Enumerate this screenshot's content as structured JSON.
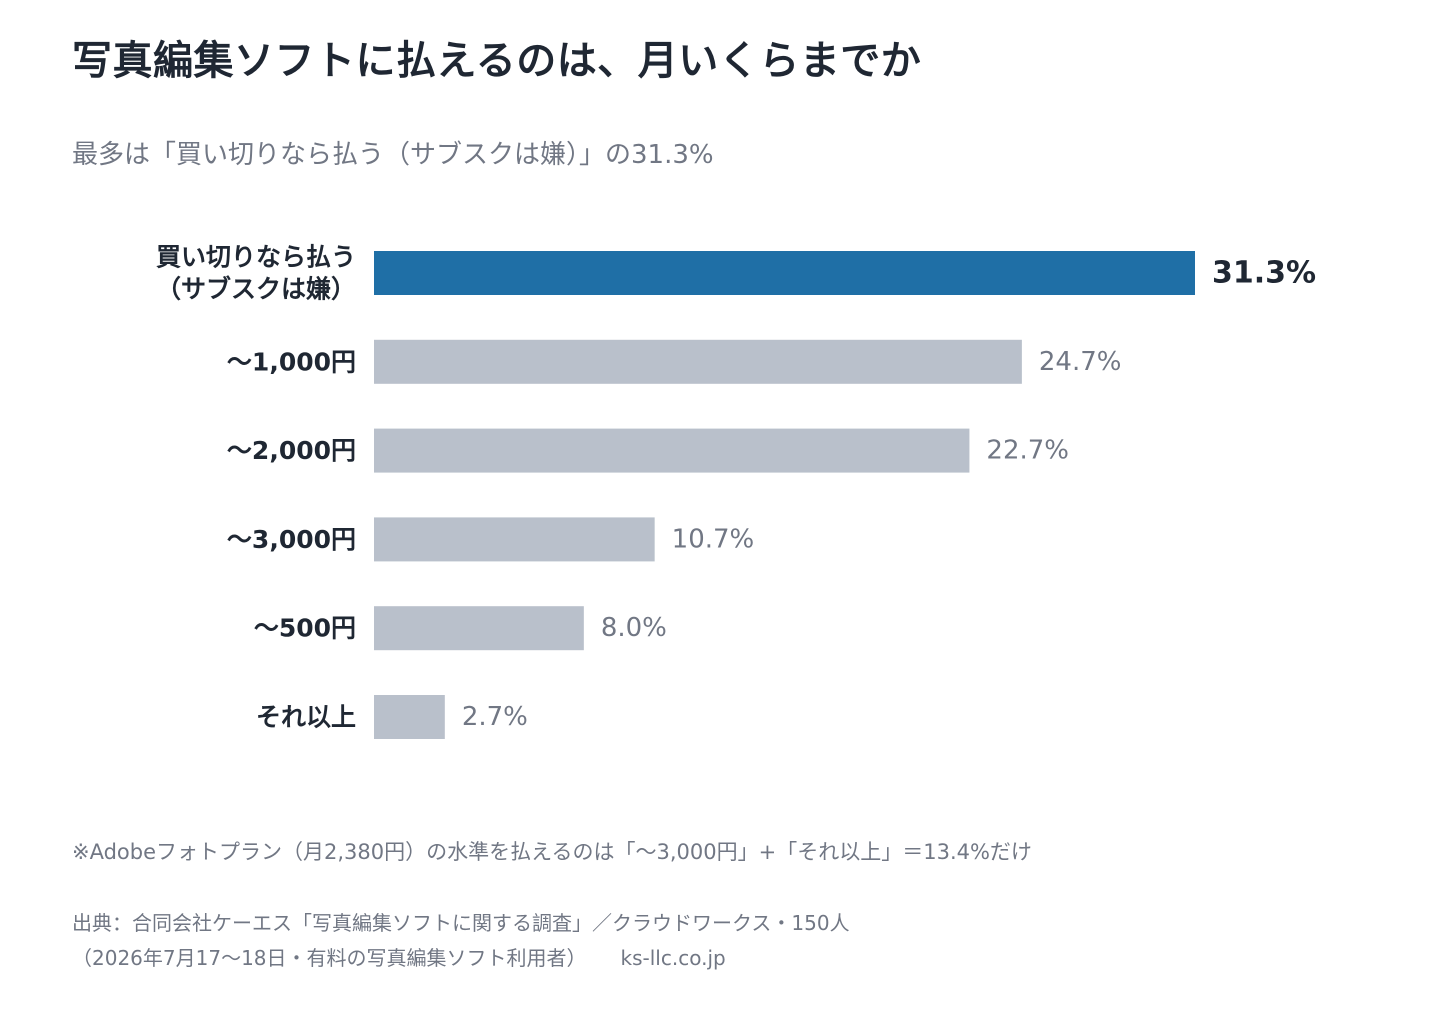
{
  "title": "写真編集ソフトに払えるのは、月いくらまでか",
  "subtitle": "最多は「買い切りなら払う（サブスクは嫌）」の31.3%",
  "chart_data": {
    "type": "bar",
    "orientation": "horizontal",
    "categories": [
      [
        "買い切りなら払う",
        "（サブスクは嫌）"
      ],
      [
        "～1,000円"
      ],
      [
        "～2,000円"
      ],
      [
        "～3,000円"
      ],
      [
        "～500円"
      ],
      [
        "それ以上"
      ]
    ],
    "values": [
      31.3,
      24.7,
      22.7,
      10.7,
      8.0,
      2.7
    ],
    "value_labels": [
      "31.3%",
      "24.7%",
      "22.7%",
      "10.7%",
      "8.0%",
      "2.7%"
    ],
    "highlight_index": 0,
    "unit": "%",
    "xlim": [
      0,
      31.3
    ],
    "grid": false,
    "legend": "none",
    "colors": {
      "highlight": "#1f6fa6",
      "default": "#b9c0cb",
      "highlight_label": "#1f2733",
      "default_label": "#717784",
      "category_label": "#1f2733"
    }
  },
  "note": "※Adobeフォトプラン（月2,380円）の水準を払えるのは「～3,000円」+「それ以上」＝13.4%だけ",
  "source": {
    "line1": "出典：合同会社ケーエス「写真編集ソフトに関する調査」／クラウドワークス・150人",
    "line2": "（2026年7月17～18日・有料の写真編集ソフト利用者）",
    "site": "ks-llc.co.jp"
  }
}
